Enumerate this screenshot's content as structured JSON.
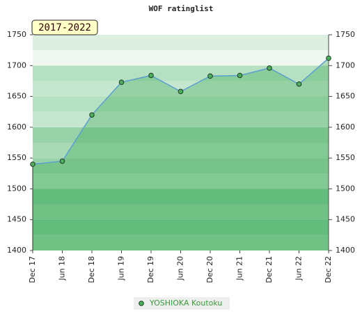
{
  "chart_data": {
    "type": "line",
    "title": "WOF ratinglist",
    "annotation": "2017-2022",
    "categories": [
      "Dec 17",
      "Jun 18",
      "Dec 18",
      "Jun 19",
      "Dec 19",
      "Jun 20",
      "Dec 20",
      "Jun 21",
      "Dec 21",
      "Jun 22",
      "Dec 22"
    ],
    "series": [
      {
        "name": "YOSHIOKA Koutoku",
        "color": "#5a9fd0",
        "marker_color": "#4caf5c",
        "values": [
          1540,
          1545,
          1620,
          1673,
          1684,
          1658,
          1683,
          1684,
          1696,
          1670,
          1712
        ]
      }
    ],
    "ylim": [
      1400,
      1750
    ],
    "yticks": [
      1400,
      1450,
      1500,
      1550,
      1600,
      1650,
      1700,
      1750
    ]
  }
}
